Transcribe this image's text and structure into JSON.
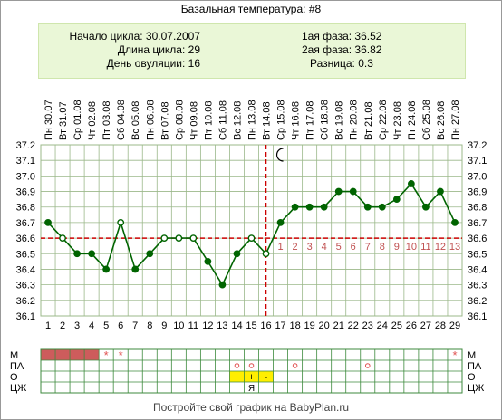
{
  "title": "Базальная температура: #8",
  "info": {
    "cycle_start": "Начало цикла: 30.07.2007",
    "cycle_length": "Длина цикла: 29",
    "ovulation_day": "День овуляции: 16",
    "phase1": "1ая фаза: 36.52",
    "phase2": "2ая фаза: 36.82",
    "difference": "Разница: 0.3"
  },
  "footer": "Постройте свой график на BabyPlan.ru",
  "colors": {
    "line": "#006400",
    "coverline": "#cc0000",
    "ovulation_line": "#cc0000",
    "grid": "#9bb88a",
    "menstruation": "#cd5c5c",
    "highlight": "#ffee00",
    "info_background": "#eaf7d7"
  },
  "chart_data": {
    "type": "line",
    "title": "Базальная температура: #8",
    "x": [
      1,
      2,
      3,
      4,
      5,
      6,
      7,
      8,
      9,
      10,
      11,
      12,
      13,
      14,
      15,
      16,
      17,
      18,
      19,
      20,
      21,
      22,
      23,
      24,
      25,
      26,
      27,
      28,
      29
    ],
    "dates": [
      "Пн 30.07",
      "Вт 31.07",
      "Ср 01.08",
      "Чт 02.08",
      "Пт 03.08",
      "Сб 04.08",
      "Вс 05.08",
      "Пн 06.08",
      "Вт 07.08",
      "Ср 08.08",
      "Чт 09.08",
      "Пт 10.08",
      "Сб 11.08",
      "Вс 12.08",
      "Пн 13.08",
      "Вт 14.08",
      "Ср 15.08",
      "Чт 16.08",
      "Пт 17.08",
      "Сб 18.08",
      "Вс 19.08",
      "Пн 20.08",
      "Вт 21.08",
      "Ср 22.08",
      "Чт 23.08",
      "Пт 24.08",
      "Сб 25.08",
      "Вс 26.08",
      "Пн 27.08"
    ],
    "series": [
      {
        "values": [
          36.7,
          36.6,
          36.5,
          36.5,
          36.4,
          36.7,
          36.4,
          36.5,
          36.6,
          36.6,
          36.6,
          36.45,
          36.3,
          36.5,
          36.6,
          36.5,
          36.7,
          36.8,
          36.8,
          36.8,
          36.9,
          36.9,
          36.8,
          36.8,
          36.85,
          36.95,
          36.8,
          36.9,
          36.7
        ]
      }
    ],
    "y_ticks": [
      "37.2",
      "37.1",
      "37.0",
      "36.9",
      "36.8",
      "36.7",
      "36.6",
      "36.5",
      "36.4",
      "36.3",
      "36.2",
      "36.1"
    ],
    "ylim": [
      36.1,
      37.2
    ],
    "coverline": 36.6,
    "ovulation_day": 16,
    "phase2_labels": [
      "1",
      "2",
      "3",
      "4",
      "5",
      "6",
      "7",
      "8",
      "9",
      "10",
      "11",
      "12",
      "13"
    ],
    "open_markers": [
      2,
      6,
      9,
      10,
      11,
      15,
      16
    ],
    "moon_icon": "crescent-moon-icon",
    "grid": true
  },
  "bottom_grid": {
    "row_labels": [
      "М",
      "ПА",
      "О",
      "ЦЖ"
    ],
    "menstruation_days": [
      1,
      2,
      3,
      4
    ],
    "m_star_days": [
      5,
      6,
      29
    ],
    "pa_circle_days": [
      14,
      15,
      18,
      23
    ],
    "o_cells": [
      {
        "day": 14,
        "text": "+"
      },
      {
        "day": 15,
        "text": "+"
      },
      {
        "day": 16,
        "text": "-"
      }
    ],
    "cz_cells": [
      {
        "day": 15,
        "text": "Я"
      }
    ]
  }
}
